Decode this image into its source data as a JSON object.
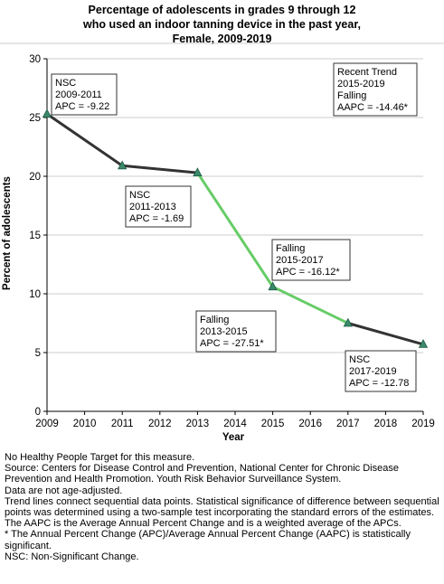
{
  "title_lines": [
    "Percentage of adolescents in grades 9 through 12",
    "who used an indoor tanning device in the past year,",
    "Female,  2009-2019"
  ],
  "chart_data": {
    "type": "line",
    "title": "Percentage of adolescents in grades 9 through 12 who used an indoor tanning device in the past year, Female,  2009-2019",
    "xlabel": "Year",
    "ylabel": "Percent of adolescents",
    "xlim": [
      2009,
      2019
    ],
    "ylim": [
      0,
      30
    ],
    "x_ticks": [
      2009,
      2010,
      2011,
      2012,
      2013,
      2014,
      2015,
      2016,
      2017,
      2018,
      2019
    ],
    "y_ticks": [
      0,
      5,
      10,
      15,
      20,
      25,
      30
    ],
    "grid": "horizontal",
    "colors": {
      "line": "#333333",
      "falling": "#66cc66",
      "marker": "#3a8a6a",
      "grid": "#cccccc"
    },
    "points": [
      {
        "x": 2009,
        "y": 25.3
      },
      {
        "x": 2011,
        "y": 20.9
      },
      {
        "x": 2013,
        "y": 20.3
      },
      {
        "x": 2015,
        "y": 10.6
      },
      {
        "x": 2017,
        "y": 7.5
      },
      {
        "x": 2019,
        "y": 5.7
      }
    ],
    "segments": [
      {
        "from": 2009,
        "to": 2011,
        "trend": "NSC",
        "apc": "-9.22"
      },
      {
        "from": 2011,
        "to": 2013,
        "trend": "NSC",
        "apc": "-1.69"
      },
      {
        "from": 2013,
        "to": 2015,
        "trend": "Falling",
        "apc": "-27.51*"
      },
      {
        "from": 2015,
        "to": 2017,
        "trend": "Falling",
        "apc": "-16.12*"
      },
      {
        "from": 2017,
        "to": 2019,
        "trend": "NSC",
        "apc": "-12.78"
      }
    ],
    "annotations": [
      {
        "lines": [
          "NSC",
          "2009-2011",
          "APC = -9.22"
        ]
      },
      {
        "lines": [
          "NSC",
          "2011-2013",
          "APC = -1.69"
        ]
      },
      {
        "lines": [
          "Falling",
          "2013-2015",
          "APC = -27.51*"
        ]
      },
      {
        "lines": [
          "Falling",
          "2015-2017",
          "APC = -16.12*"
        ]
      },
      {
        "lines": [
          "NSC",
          "2017-2019",
          "APC = -12.78"
        ]
      },
      {
        "lines": [
          "Recent Trend",
          "2015-2019",
          "Falling",
          "AAPC = -14.46*"
        ]
      }
    ]
  },
  "notes": [
    "No Healthy People Target for this measure.",
    "Source: Centers for Disease Control and Prevention, National Center for Chronic Disease Prevention and Health Promotion. Youth Risk Behavior Surveillance System.",
    "Data are not age-adjusted.",
    "Trend lines connect sequential data points. Statistical significance of difference between sequential points was determined using a two-sample test incorporating the standard errors of the estimates.",
    "The AAPC is the Average Annual Percent Change and is a weighted average of the APCs.",
    "* The Annual Percent Change (APC)/Average Annual Percent Change (AAPC) is statistically significant.",
    "NSC: Non-Significant Change."
  ]
}
